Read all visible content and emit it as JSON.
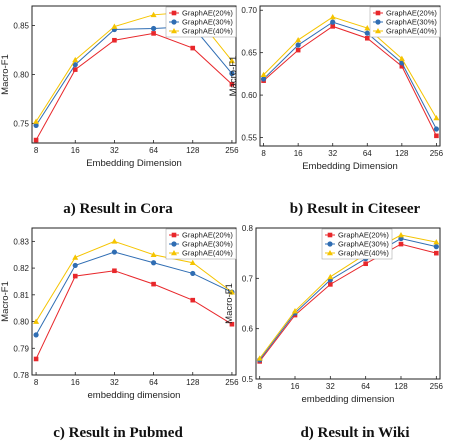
{
  "series_styles": [
    {
      "color": "#e8272b",
      "marker": "square"
    },
    {
      "color": "#2f6db3",
      "marker": "circle"
    },
    {
      "color": "#f5c400",
      "marker": "triangle"
    }
  ],
  "chart_data": [
    {
      "type": "line",
      "caption": "a) Result in Cora",
      "xlabel": "Embedding Dimension",
      "ylabel": "Macro-F1",
      "categories": [
        "8",
        "16",
        "32",
        "64",
        "128",
        "256"
      ],
      "ylim": [
        0.73,
        0.87
      ],
      "yticks": [
        0.75,
        0.8,
        0.85
      ],
      "ytick_labels": [
        "0.75",
        "0.80",
        "0.85"
      ],
      "legend": "top-right",
      "grid": false,
      "series": [
        {
          "name": "GraphAE(20%)",
          "values": [
            0.733,
            0.805,
            0.835,
            0.842,
            0.827,
            0.79
          ]
        },
        {
          "name": "GraphAE(30%)",
          "values": [
            0.748,
            0.81,
            0.846,
            0.847,
            0.849,
            0.801
          ]
        },
        {
          "name": "GraphAE(40%)",
          "values": [
            0.752,
            0.815,
            0.849,
            0.861,
            0.864,
            0.814
          ]
        }
      ]
    },
    {
      "type": "line",
      "caption": "b) Result in Citeseer",
      "xlabel": "Embedding Dimension",
      "ylabel": "Macro-F1",
      "categories": [
        "8",
        "16",
        "32",
        "64",
        "128",
        "256"
      ],
      "ylim": [
        0.54,
        0.705
      ],
      "yticks": [
        0.55,
        0.6,
        0.65,
        0.7
      ],
      "ytick_labels": [
        "0.55",
        "0.60",
        "0.65",
        "0.70"
      ],
      "legend": "top-right",
      "grid": false,
      "series": [
        {
          "name": "GraphAE(20%)",
          "values": [
            0.617,
            0.653,
            0.681,
            0.667,
            0.634,
            0.552
          ]
        },
        {
          "name": "GraphAE(30%)",
          "values": [
            0.619,
            0.659,
            0.686,
            0.673,
            0.638,
            0.56
          ]
        },
        {
          "name": "GraphAE(40%)",
          "values": [
            0.624,
            0.665,
            0.692,
            0.679,
            0.643,
            0.573
          ]
        }
      ]
    },
    {
      "type": "line",
      "caption": "c) Result in Pubmed",
      "xlabel": "embedding dimension",
      "ylabel": "Macro-F1",
      "categories": [
        "8",
        "16",
        "32",
        "64",
        "128",
        "256"
      ],
      "ylim": [
        0.78,
        0.835
      ],
      "yticks": [
        0.78,
        0.79,
        0.8,
        0.81,
        0.82,
        0.83
      ],
      "ytick_labels": [
        "0.78",
        "0.79",
        "0.80",
        "0.81",
        "0.82",
        "0.83"
      ],
      "legend": "top-right",
      "grid": false,
      "series": [
        {
          "name": "GraphAE(20%)",
          "values": [
            0.786,
            0.817,
            0.819,
            0.814,
            0.808,
            0.799
          ]
        },
        {
          "name": "GraphAE(30%)",
          "values": [
            0.795,
            0.821,
            0.826,
            0.822,
            0.818,
            0.811
          ]
        },
        {
          "name": "GraphAE(40%)",
          "values": [
            0.8,
            0.824,
            0.83,
            0.825,
            0.822,
            0.811
          ]
        }
      ]
    },
    {
      "type": "line",
      "caption": "d) Result in Wiki",
      "xlabel": "embedding dimension",
      "ylabel": "Macro-F1",
      "categories": [
        "8",
        "16",
        "32",
        "64",
        "128",
        "256"
      ],
      "ylim": [
        0.5,
        0.8
      ],
      "yticks": [
        0.5,
        0.6,
        0.7,
        0.8
      ],
      "ytick_labels": [
        "0.5",
        "0.6",
        "0.7",
        "0.8"
      ],
      "legend": "top-left",
      "grid": false,
      "series": [
        {
          "name": "GraphAE(20%)",
          "values": [
            0.535,
            0.627,
            0.688,
            0.729,
            0.768,
            0.75
          ]
        },
        {
          "name": "GraphAE(30%)",
          "values": [
            0.538,
            0.631,
            0.697,
            0.739,
            0.779,
            0.763
          ]
        },
        {
          "name": "GraphAE(40%)",
          "values": [
            0.541,
            0.635,
            0.703,
            0.748,
            0.786,
            0.772
          ]
        }
      ]
    }
  ]
}
